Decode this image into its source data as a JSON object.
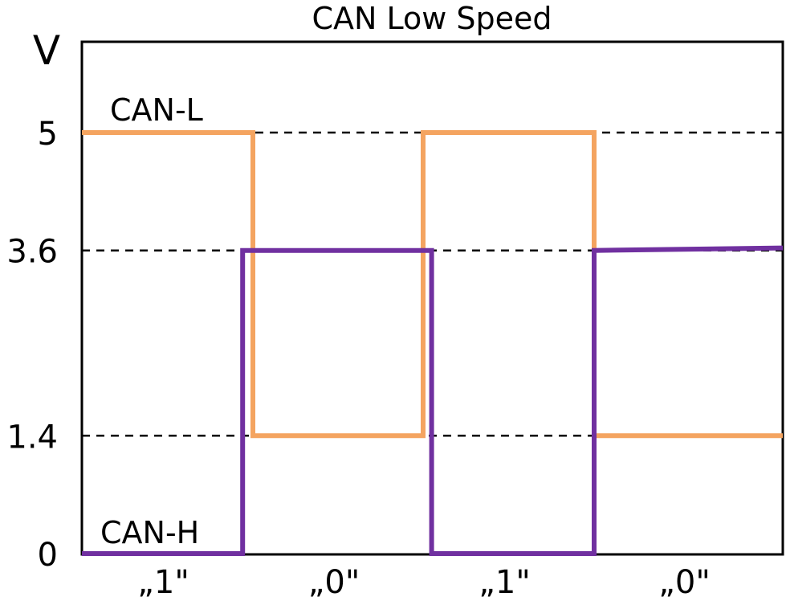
{
  "chart_data": {
    "type": "line",
    "title": "CAN Low Speed",
    "ylabel": "V",
    "xlabel": "",
    "ylim": [
      0,
      5
    ],
    "xlim": [
      0,
      4
    ],
    "y_ticks": [
      {
        "value": 5,
        "label": "5"
      },
      {
        "value": 3.6,
        "label": "3.6"
      },
      {
        "value": 1.4,
        "label": "1.4"
      },
      {
        "value": 0,
        "label": "0"
      }
    ],
    "reference_lines": [
      5,
      3.6,
      1.4
    ],
    "bits": [
      {
        "center": 0.5,
        "label": "„1\""
      },
      {
        "center": 1.5,
        "label": "„0\""
      },
      {
        "center": 2.5,
        "label": "„1\""
      },
      {
        "center": 3.5,
        "label": "„0\""
      }
    ],
    "series": [
      {
        "name": "CAN-L",
        "color": "#F4A460",
        "points": [
          [
            0,
            5
          ],
          [
            1,
            5
          ],
          [
            1,
            1.4
          ],
          [
            2,
            1.4
          ],
          [
            2,
            5
          ],
          [
            3,
            5
          ],
          [
            3,
            1.4
          ],
          [
            4,
            1.4
          ]
        ]
      },
      {
        "name": "CAN-H",
        "color": "#7030A0",
        "points": [
          [
            0,
            0
          ],
          [
            0.94,
            0
          ],
          [
            0.94,
            3.6
          ],
          [
            2.05,
            3.6
          ],
          [
            2.05,
            0
          ],
          [
            3.0,
            0
          ],
          [
            3.0,
            3.6
          ],
          [
            4,
            3.63
          ]
        ]
      }
    ],
    "grid": false,
    "legend": "inline labels"
  }
}
